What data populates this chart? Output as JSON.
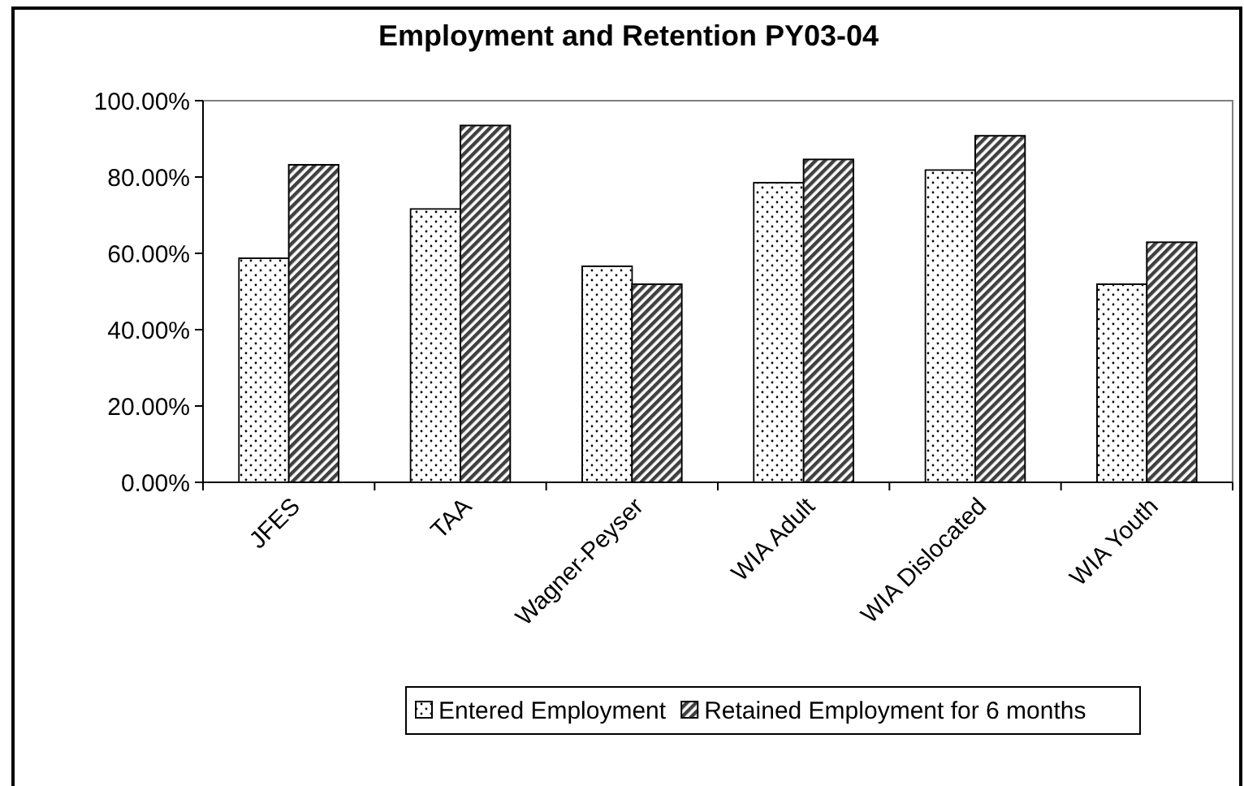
{
  "chart_data": {
    "type": "bar",
    "title": "Employment and Retention PY03-04",
    "categories": [
      "JFES",
      "TAA",
      "Wagner-Peyser",
      "WIA Adult",
      "WIA Dislocated",
      "WIA Youth"
    ],
    "series": [
      {
        "name": "Entered Employment",
        "color": "#ffffff",
        "values": [
          58.7,
          71.6,
          56.6,
          78.5,
          81.8,
          51.9
        ]
      },
      {
        "name": "Retained Employment for 6 months",
        "color": "#404040",
        "values": [
          83.2,
          93.5,
          51.9,
          84.6,
          90.8,
          62.9
        ]
      }
    ],
    "ylim": [
      0,
      100
    ],
    "yticks": [
      {
        "value": 0,
        "label": "0.00%"
      },
      {
        "value": 20,
        "label": "20.00%"
      },
      {
        "value": 40,
        "label": "40.00%"
      },
      {
        "value": 60,
        "label": "60.00%"
      },
      {
        "value": 80,
        "label": "80.00%"
      },
      {
        "value": 100,
        "label": "100.00%"
      }
    ],
    "legend": "bottom"
  }
}
